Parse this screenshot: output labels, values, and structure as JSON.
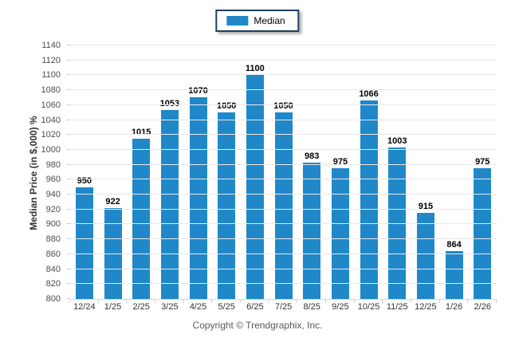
{
  "legend": {
    "label": "Median"
  },
  "chart_data": {
    "type": "bar",
    "categories": [
      "12/24",
      "1/25",
      "2/25",
      "3/25",
      "4/25",
      "5/25",
      "6/25",
      "7/25",
      "8/25",
      "9/25",
      "10/25",
      "11/25",
      "12/25",
      "1/26",
      "2/26"
    ],
    "values": [
      950,
      922,
      1015,
      1053,
      1070,
      1050,
      1100,
      1050,
      983,
      975,
      1066,
      1003,
      915,
      864,
      975
    ],
    "title": "",
    "xlabel": "",
    "ylabel": "Median Price (in $,000) %",
    "ylim": [
      800,
      1140
    ],
    "ytick_step": 20,
    "grid": true,
    "legend_position": "top-center",
    "bar_color": "#2088c8",
    "data_labels": true
  },
  "footer": {
    "copyright": "Copyright © Trendgraphix, Inc."
  }
}
